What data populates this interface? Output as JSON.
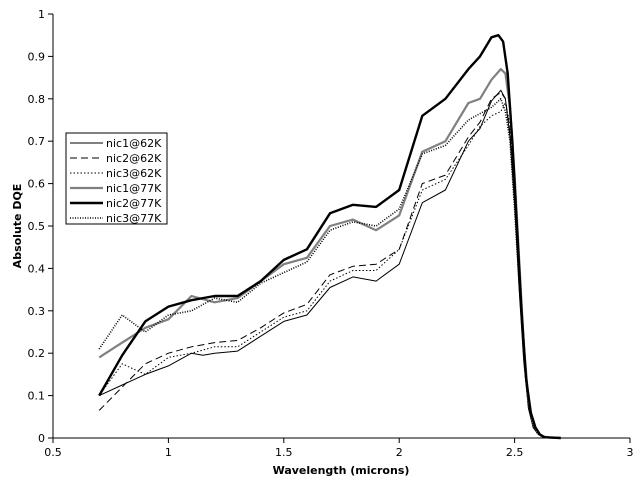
{
  "chart_data": {
    "type": "line",
    "xlabel": "Wavelength (microns)",
    "ylabel": "Absolute DQE",
    "xlim": [
      0.5,
      3
    ],
    "ylim": [
      0,
      1
    ],
    "x_ticks": [
      "0.5",
      "1",
      "1.5",
      "2",
      "2.5",
      "3"
    ],
    "y_ticks": [
      "0",
      "0.1",
      "0.2",
      "0.3",
      "0.4",
      "0.5",
      "0.6",
      "0.7",
      "0.8",
      "0.9",
      "1"
    ],
    "grid": false,
    "legend_position": "left",
    "colors": {
      "lines": "#000000",
      "gray_series": "#808080"
    },
    "series": [
      {
        "name": "nic1@62K",
        "style": "solid-thin",
        "x": [
          0.7,
          0.8,
          0.9,
          1.0,
          1.05,
          1.1,
          1.15,
          1.2,
          1.3,
          1.4,
          1.5,
          1.6,
          1.7,
          1.8,
          1.9,
          2.0,
          2.1,
          2.2,
          2.3,
          2.35,
          2.4,
          2.44,
          2.46,
          2.48,
          2.5,
          2.52,
          2.54,
          2.56,
          2.58,
          2.6,
          2.62,
          2.65
        ],
        "y": [
          0.1,
          0.125,
          0.15,
          0.17,
          0.185,
          0.2,
          0.195,
          0.2,
          0.205,
          0.24,
          0.275,
          0.29,
          0.355,
          0.38,
          0.37,
          0.41,
          0.555,
          0.585,
          0.7,
          0.73,
          0.795,
          0.82,
          0.8,
          0.71,
          0.55,
          0.35,
          0.18,
          0.07,
          0.025,
          0.01,
          0.003,
          0
        ]
      },
      {
        "name": "nic2@62K",
        "style": "dashed",
        "x": [
          0.7,
          0.8,
          0.9,
          1.0,
          1.1,
          1.2,
          1.3,
          1.4,
          1.5,
          1.6,
          1.7,
          1.8,
          1.9,
          2.0,
          2.1,
          2.2,
          2.3,
          2.35,
          2.4,
          2.44,
          2.46,
          2.48,
          2.5,
          2.52,
          2.54,
          2.56,
          2.58,
          2.6,
          2.62,
          2.65
        ],
        "y": [
          0.065,
          0.12,
          0.175,
          0.2,
          0.215,
          0.225,
          0.23,
          0.26,
          0.295,
          0.315,
          0.385,
          0.405,
          0.41,
          0.445,
          0.6,
          0.62,
          0.71,
          0.745,
          0.8,
          0.815,
          0.8,
          0.72,
          0.56,
          0.36,
          0.19,
          0.08,
          0.03,
          0.01,
          0.003,
          0
        ]
      },
      {
        "name": "nic3@62K",
        "style": "dotted",
        "x": [
          0.7,
          0.8,
          0.9,
          1.0,
          1.1,
          1.2,
          1.3,
          1.4,
          1.5,
          1.6,
          1.7,
          1.8,
          1.9,
          2.0,
          2.1,
          2.2,
          2.3,
          2.35,
          2.4,
          2.44,
          2.46,
          2.48,
          2.5,
          2.52,
          2.54,
          2.56,
          2.58,
          2.6,
          2.62,
          2.65
        ],
        "y": [
          0.1,
          0.175,
          0.15,
          0.19,
          0.2,
          0.215,
          0.215,
          0.25,
          0.285,
          0.3,
          0.37,
          0.395,
          0.395,
          0.445,
          0.585,
          0.61,
          0.69,
          0.735,
          0.76,
          0.77,
          0.79,
          0.74,
          0.58,
          0.38,
          0.2,
          0.09,
          0.035,
          0.012,
          0.004,
          0
        ]
      },
      {
        "name": "nic1@77K",
        "style": "solid-gray",
        "x": [
          0.7,
          0.8,
          0.9,
          1.0,
          1.1,
          1.2,
          1.3,
          1.4,
          1.5,
          1.6,
          1.7,
          1.8,
          1.9,
          2.0,
          2.1,
          2.2,
          2.3,
          2.35,
          2.4,
          2.44,
          2.46,
          2.48,
          2.5,
          2.52,
          2.54,
          2.56,
          2.58,
          2.6,
          2.62,
          2.65,
          2.7
        ],
        "y": [
          0.19,
          0.225,
          0.26,
          0.28,
          0.335,
          0.32,
          0.33,
          0.37,
          0.41,
          0.425,
          0.5,
          0.515,
          0.49,
          0.525,
          0.675,
          0.7,
          0.79,
          0.8,
          0.845,
          0.87,
          0.86,
          0.78,
          0.62,
          0.42,
          0.22,
          0.09,
          0.035,
          0.012,
          0.004,
          0.001,
          0
        ]
      },
      {
        "name": "nic2@77K",
        "style": "solid-thick",
        "x": [
          0.7,
          0.8,
          0.9,
          1.0,
          1.1,
          1.2,
          1.3,
          1.4,
          1.5,
          1.6,
          1.7,
          1.8,
          1.9,
          2.0,
          2.1,
          2.2,
          2.3,
          2.35,
          2.4,
          2.43,
          2.45,
          2.47,
          2.49,
          2.51,
          2.53,
          2.55,
          2.57,
          2.59,
          2.61,
          2.63,
          2.66,
          2.7
        ],
        "y": [
          0.1,
          0.195,
          0.275,
          0.31,
          0.325,
          0.335,
          0.335,
          0.37,
          0.42,
          0.445,
          0.53,
          0.55,
          0.545,
          0.585,
          0.76,
          0.8,
          0.87,
          0.9,
          0.945,
          0.95,
          0.935,
          0.86,
          0.7,
          0.5,
          0.3,
          0.14,
          0.06,
          0.025,
          0.008,
          0.002,
          0.001,
          0
        ]
      },
      {
        "name": "nic3@77K",
        "style": "dotted-gray",
        "x": [
          0.7,
          0.8,
          0.9,
          1.0,
          1.1,
          1.2,
          1.3,
          1.4,
          1.5,
          1.6,
          1.7,
          1.8,
          1.9,
          2.0,
          2.1,
          2.2,
          2.3,
          2.35,
          2.4,
          2.44,
          2.46,
          2.48,
          2.5,
          2.52,
          2.54,
          2.56,
          2.58,
          2.6,
          2.62,
          2.65
        ],
        "y": [
          0.21,
          0.29,
          0.25,
          0.29,
          0.3,
          0.33,
          0.32,
          0.365,
          0.39,
          0.415,
          0.49,
          0.51,
          0.5,
          0.54,
          0.67,
          0.69,
          0.75,
          0.765,
          0.78,
          0.8,
          0.77,
          0.7,
          0.54,
          0.36,
          0.19,
          0.08,
          0.03,
          0.01,
          0.003,
          0
        ]
      }
    ]
  }
}
